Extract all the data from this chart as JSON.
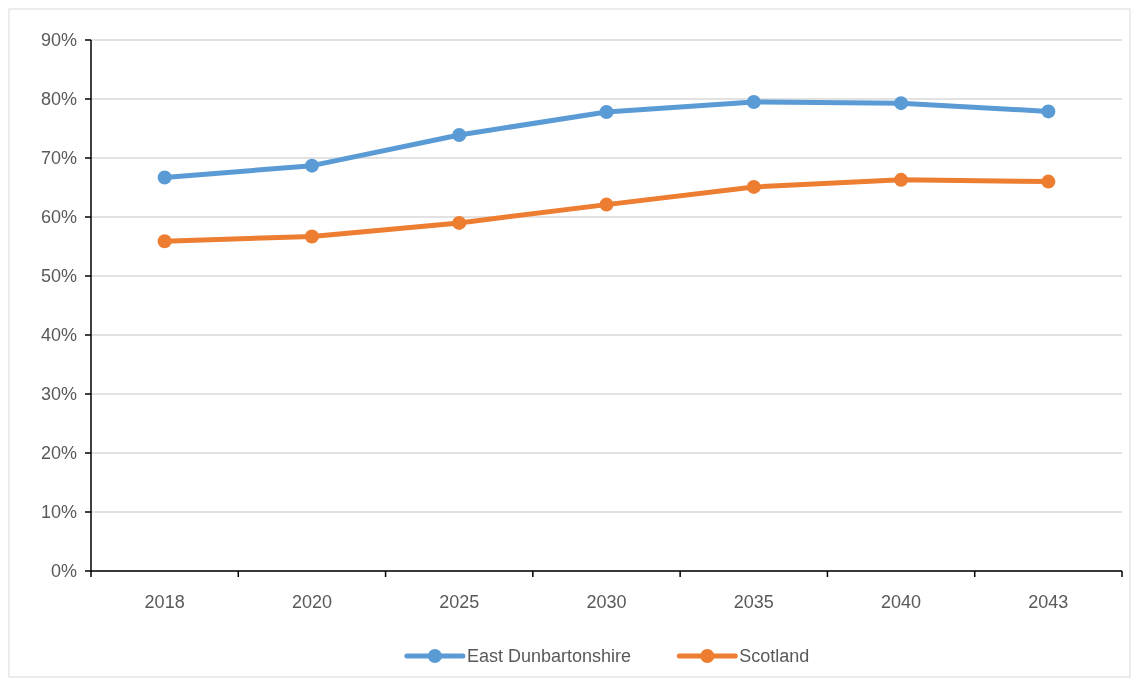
{
  "chart_data": {
    "type": "line",
    "categories": [
      "2018",
      "2020",
      "2025",
      "2030",
      "2035",
      "2040",
      "2043"
    ],
    "series": [
      {
        "name": "East Dunbartonshire",
        "color": "#5b9bd5",
        "values": [
          66.7,
          68.7,
          73.9,
          77.8,
          79.5,
          79.3,
          77.9
        ]
      },
      {
        "name": "Scotland",
        "color": "#ed7d31",
        "values": [
          55.9,
          56.7,
          59.0,
          62.1,
          65.1,
          66.3,
          66.0
        ]
      }
    ],
    "ylim": [
      0,
      90
    ],
    "yticks": [
      {
        "value": 0,
        "label": "0%"
      },
      {
        "value": 10,
        "label": "10%"
      },
      {
        "value": 20,
        "label": "20%"
      },
      {
        "value": 30,
        "label": "30%"
      },
      {
        "value": 40,
        "label": "40%"
      },
      {
        "value": 50,
        "label": "50%"
      },
      {
        "value": 60,
        "label": "60%"
      },
      {
        "value": 70,
        "label": "70%"
      },
      {
        "value": 80,
        "label": "80%"
      },
      {
        "value": 90,
        "label": "90%"
      }
    ],
    "grid": "y",
    "legend": "bottom",
    "marker": "circle",
    "line_style": "solid"
  }
}
